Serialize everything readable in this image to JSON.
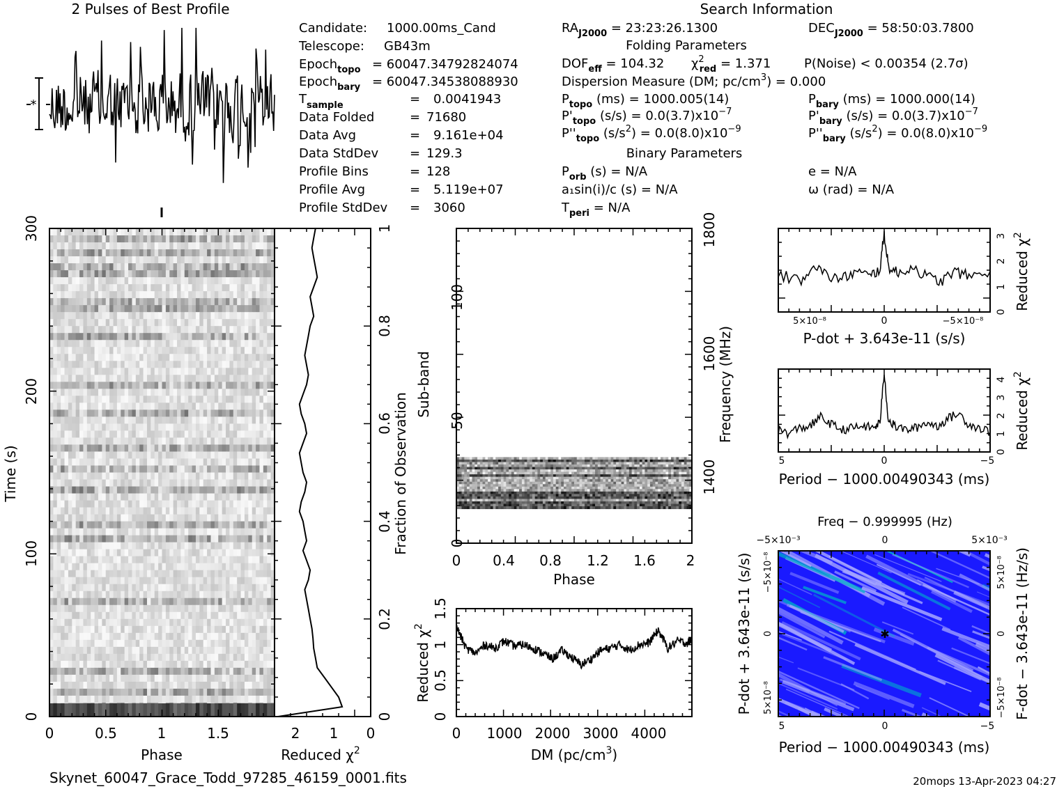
{
  "title_profile": "2 Pulses of Best Profile",
  "title_search": "Search Information",
  "footer": {
    "filename": "Skynet_60047_Grace_Todd_97285_46159_0001.fits",
    "stamp": "20mops 13-Apr-2023 04:27"
  },
  "info_left": [
    {
      "label": "Candidate:",
      "value": "1000.00ms_Cand"
    },
    {
      "label": "Telescope:",
      "value": "GB43m"
    },
    {
      "label": "Epoch",
      "sub": "topo",
      "value": "= 60047.34792824074"
    },
    {
      "label": "Epoch",
      "sub": "bary",
      "value": "= 60047.34538088930"
    },
    {
      "label": "T",
      "sub": "sample",
      "value": "0.0041943"
    },
    {
      "label": "Data Folded",
      "value": "71680"
    },
    {
      "label": "Data Avg",
      "value": "9.161e+04"
    },
    {
      "label": "Data StdDev",
      "value": "129.3"
    },
    {
      "label": "Profile Bins",
      "value": "128"
    },
    {
      "label": "Profile Avg",
      "value": "5.119e+07"
    },
    {
      "label": "Profile StdDev",
      "value": "3060"
    }
  ],
  "info_right": {
    "ra": "= 23:23:26.1300",
    "dec": "= 58:50:03.7800",
    "folding_header": "Folding Parameters",
    "dof": "= 104.32",
    "chi2red": "= 1.371",
    "pnoise": "P(Noise) < 0.00354   (2.7σ)",
    "dm_line": "Dispersion Measure (DM; pc/cm",
    "dm_value": ") = 0.000",
    "ptopo": "(ms) =  1000.005(14)",
    "pbary": "(ms) =  1000.000(14)",
    "pdot_topo": "(s/s) = 0.0(3.7)x10",
    "pdot_bary": "(s/s) = 0.0(3.7)x10",
    "pdd_topo": ") = 0.0(8.0)x10",
    "pdd_bary": ") = 0.0(8.0)x10",
    "binary_header": "Binary Parameters",
    "porb": "(s) = N/A",
    "a1": "a₁sin(i)/c (s) = N/A",
    "tperi": "= N/A",
    "ecc": "e = N/A",
    "omega": "ω (rad) = N/A"
  },
  "colors": {
    "ppdot_dark": "#1a1aff",
    "ppdot_light": "#a6a6ff",
    "ppdot_accent": "#00b0c8"
  },
  "chart_data": [
    {
      "type": "line",
      "name": "profile",
      "title": "2 Pulses of Best Profile",
      "note": "noise-like profile, 256 points over 2 pulses",
      "x_range": [
        0,
        2
      ]
    },
    {
      "type": "heatmap",
      "name": "time_vs_phase",
      "xlabel": "Phase",
      "ylabel": "Time (s)",
      "xlim": [
        0,
        2
      ],
      "ylim": [
        0,
        300
      ],
      "xticks": [
        "0",
        "0.5",
        "1",
        "1.5"
      ],
      "yticks": [
        "0",
        "100",
        "200",
        "300"
      ]
    },
    {
      "type": "line",
      "name": "reduced_chi2_vs_time",
      "xlabel": "Reduced χ²",
      "ylabel": "Fraction of Observation",
      "xlim": [
        2.7,
        0
      ],
      "ylim": [
        0,
        1
      ],
      "xticks": [
        "2",
        "1",
        "0"
      ],
      "yticks": [
        "0",
        "0.2",
        "0.4",
        "0.6",
        "0.8",
        "1"
      ],
      "y": [
        0,
        0.02,
        0.04,
        0.06,
        0.08,
        0.1,
        0.12,
        0.14,
        0.16,
        0.18,
        0.2,
        0.22,
        0.24,
        0.26,
        0.28,
        0.3,
        0.32,
        0.34,
        0.36,
        0.38,
        0.4,
        0.42,
        0.44,
        0.46,
        0.48,
        0.5,
        0.52,
        0.54,
        0.56,
        0.58,
        0.6,
        0.62,
        0.64,
        0.66,
        0.68,
        0.7,
        0.72,
        0.74,
        0.76,
        0.78,
        0.8,
        0.82,
        0.84,
        0.86,
        0.88,
        0.9,
        0.92,
        0.94,
        0.96,
        0.98,
        1.0
      ],
      "x": [
        2.6,
        0.8,
        0.9,
        1.1,
        1.3,
        1.5,
        1.55,
        1.6,
        1.62,
        1.65,
        1.7,
        1.75,
        1.8,
        1.85,
        1.75,
        1.7,
        1.8,
        1.9,
        1.8,
        1.85,
        1.9,
        2.0,
        1.95,
        1.85,
        1.8,
        1.9,
        1.95,
        2.0,
        1.9,
        1.8,
        1.85,
        1.95,
        2.0,
        1.9,
        1.8,
        1.75,
        1.8,
        1.85,
        1.8,
        1.75,
        1.7,
        1.6,
        1.65,
        1.7,
        1.6,
        1.5,
        1.55,
        1.6,
        1.65,
        1.6,
        1.55
      ]
    },
    {
      "type": "heatmap",
      "name": "subband_vs_phase",
      "xlabel": "Phase",
      "ylabel": "Sub-band",
      "y2label": "Frequency (MHz)",
      "xlim": [
        0,
        2
      ],
      "ylim": [
        0,
        128
      ],
      "filled_subbands": [
        14,
        35
      ],
      "xticks": [
        "0",
        "0.4",
        "0.8",
        "1.2",
        "1.6",
        "2"
      ],
      "yticks": [
        "0",
        "50",
        "100"
      ],
      "y2ticks": [
        "1400",
        "1600",
        "1800"
      ]
    },
    {
      "type": "line",
      "name": "reduced_chi2_vs_dm",
      "xlabel": "DM (pc/cm³)",
      "ylabel": "Reduced χ²",
      "xlim": [
        0,
        4900
      ],
      "ylim": [
        0,
        1.5
      ],
      "xticks": [
        "0",
        "1000",
        "2000",
        "3000",
        "4000"
      ],
      "yticks": [
        "0",
        "0.5",
        "1",
        "1.5"
      ],
      "x": [
        0,
        200,
        400,
        600,
        800,
        1000,
        1200,
        1400,
        1600,
        1800,
        2000,
        2200,
        2400,
        2600,
        2800,
        3000,
        3200,
        3400,
        3600,
        3800,
        4000,
        4200,
        4400,
        4600,
        4800,
        4900
      ],
      "y": [
        1.25,
        0.95,
        0.88,
        1.0,
        0.95,
        1.05,
        0.98,
        1.0,
        0.95,
        0.88,
        0.8,
        0.92,
        0.82,
        0.72,
        0.8,
        0.92,
        0.95,
        1.0,
        0.92,
        1.0,
        1.02,
        1.2,
        0.95,
        1.05,
        1.02,
        1.08
      ]
    },
    {
      "type": "line",
      "name": "reduced_chi2_vs_pdot",
      "xlabel": "P-dot + 3.643e-11 (s/s)",
      "ylabel": "Reduced χ²",
      "xlim": [
        7.5e-08,
        -7.5e-08
      ],
      "ylim": [
        0,
        3.3
      ],
      "xticks": [
        "5×10⁻⁸",
        "0",
        "−5×10⁻⁸"
      ],
      "yticks": [
        "0",
        "1",
        "2",
        "3"
      ],
      "x": [
        7.5e-08,
        6e-08,
        5e-08,
        4e-08,
        3e-08,
        2e-08,
        1e-08,
        3e-09,
        0,
        -3e-09,
        -1e-08,
        -2e-08,
        -3e-08,
        -4e-08,
        -5e-08,
        -6e-08,
        -7.5e-08
      ],
      "y": [
        1.5,
        1.2,
        1.9,
        1.4,
        1.3,
        1.6,
        1.4,
        1.7,
        3.1,
        1.8,
        1.5,
        1.8,
        1.4,
        1.2,
        1.6,
        1.4,
        1.6
      ]
    },
    {
      "type": "line",
      "name": "reduced_chi2_vs_period",
      "xlabel": "Period − 1000.00490343 (ms)",
      "ylabel": "Reduced χ²",
      "xlim": [
        5,
        -5
      ],
      "ylim": [
        0,
        4.5
      ],
      "xticks": [
        "5",
        "0",
        "−5"
      ],
      "yticks": [
        "0",
        "1",
        "2",
        "3",
        "4"
      ],
      "x": [
        5,
        4.5,
        4,
        3.5,
        3,
        2.5,
        2,
        1.5,
        1,
        0.5,
        0.2,
        0,
        -0.2,
        -0.5,
        -1,
        -1.5,
        -2,
        -2.5,
        -3,
        -3.5,
        -4,
        -4.5,
        -5
      ],
      "y": [
        1.2,
        1.0,
        1.3,
        1.4,
        1.9,
        1.5,
        1.2,
        1.3,
        1.4,
        1.3,
        1.6,
        4.3,
        1.7,
        1.4,
        1.2,
        1.3,
        1.6,
        1.4,
        1.8,
        2.1,
        1.5,
        1.3,
        1.1
      ]
    },
    {
      "type": "heatmap",
      "name": "period_pdot_plane",
      "title": "Freq − 0.999995 (Hz)",
      "xlabel": "Period − 1000.00490343 (ms)",
      "ylabel": "P-dot + 3.643e-11 (s/s)",
      "y2label": "F-dot − 3.643e-11 (Hz/s)",
      "xticks": [
        "5",
        "0",
        "−5"
      ],
      "x2ticks": [
        "−5×10⁻³",
        "0",
        "5×10⁻³"
      ],
      "yticks": [
        "5×10⁻⁸",
        "0",
        "−5×10⁻⁸"
      ],
      "y2ticks": [
        "−5×10⁻⁸",
        "0",
        "5×10⁻⁸"
      ]
    }
  ]
}
